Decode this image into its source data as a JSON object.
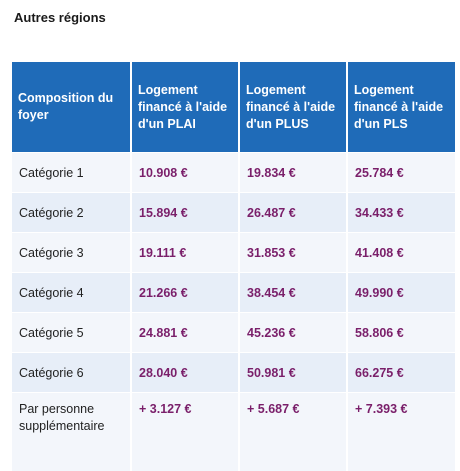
{
  "section_title": "Autres régions",
  "table": {
    "headers": [
      "Composition du foyer",
      "Logement financé à l'aide d'un PLAI",
      "Logement financé à l'aide d'un PLUS",
      "Logement financé à l'aide d'un PLS"
    ],
    "rows": [
      [
        "Catégorie 1",
        "10.908 €",
        "19.834 €",
        "25.784 €"
      ],
      [
        "Catégorie 2",
        "15.894 €",
        "26.487 €",
        "34.433 €"
      ],
      [
        "Catégorie 3",
        "19.111 €",
        "31.853 €",
        "41.408 €"
      ],
      [
        "Catégorie 4",
        "21.266 €",
        "38.454 €",
        "49.990 €"
      ],
      [
        "Catégorie 5",
        "24.881 €",
        "45.236 €",
        "58.806 €"
      ],
      [
        "Catégorie 6",
        "28.040 €",
        "50.981 €",
        "66.275 €"
      ],
      [
        "Par personne supplémentaire",
        "+ 3.127 €",
        "+ 5.687 €",
        "+ 7.393 €"
      ]
    ]
  },
  "colors": {
    "header_bg": "#1f6bb8",
    "value_text": "#7a1f6a",
    "row_light": "#f3f6fb",
    "row_dark": "#e7eef8"
  }
}
